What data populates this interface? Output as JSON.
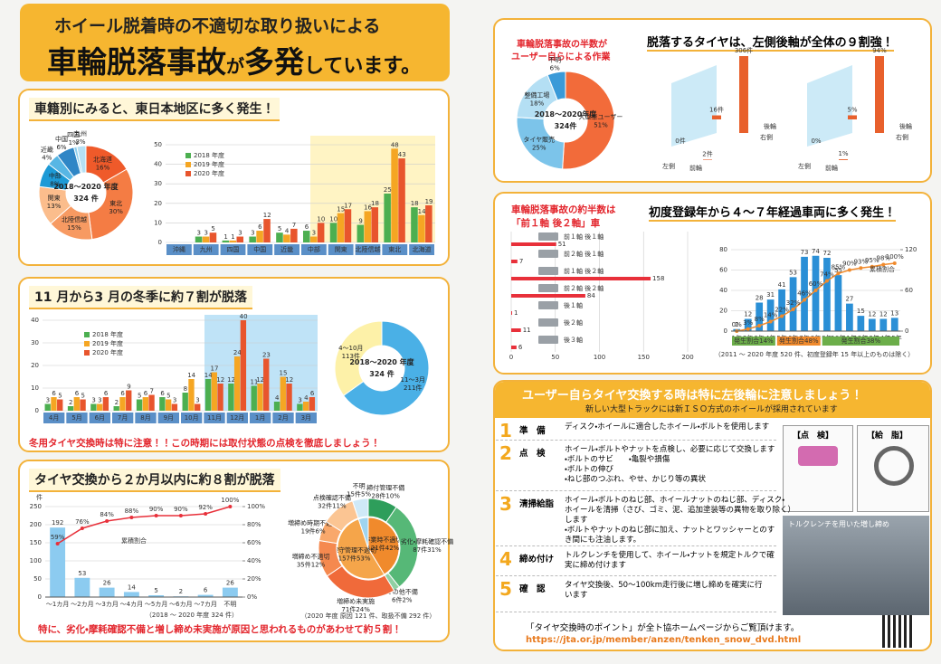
{
  "header": {
    "line1": "ホイール脱着時の不適切な取り扱いによる",
    "line2a": "車輪脱落事故",
    "line2b": "が",
    "line2c": "多発",
    "line2d": "しています。"
  },
  "region": {
    "heading": "車籍別にみると、東日本地区に多く発生！",
    "donut": {
      "type": "pie",
      "center": [
        "2018～2020 年度",
        "324 件"
      ],
      "labels": [
        "北海道",
        "東北",
        "北陸信越",
        "関東",
        "中部",
        "近畿",
        "中国",
        "四国",
        "九州"
      ],
      "values": [
        16,
        30,
        15,
        13,
        8,
        4,
        6,
        1,
        3
      ],
      "value_labels": [
        "16%",
        "30%",
        "15%",
        "13%",
        "8%",
        "4%",
        "6%",
        "1%",
        "3%"
      ],
      "colors": [
        "#ef5a2a",
        "#f47c44",
        "#f79a62",
        "#fbbd8c",
        "#1d9ad6",
        "#57b6e4",
        "#2f86c6",
        "#8fd0ee",
        "#b5e0f4"
      ]
    },
    "chart": {
      "type": "bar",
      "categories": [
        "沖縄",
        "九州",
        "四国",
        "中国",
        "近畿",
        "中部",
        "関東",
        "北陸信越",
        "東北",
        "北海道"
      ],
      "series": [
        {
          "name": "2018 年度",
          "color": "#4caf50",
          "values": [
            0,
            3,
            1,
            3,
            5,
            6,
            10,
            9,
            25,
            18
          ]
        },
        {
          "name": "2019 年度",
          "color": "#f5a623",
          "values": [
            0,
            3,
            1,
            6,
            4,
            3,
            15,
            16,
            48,
            14
          ]
        },
        {
          "name": "2020 年度",
          "color": "#e8552d",
          "values": [
            0,
            5,
            3,
            12,
            7,
            10,
            17,
            18,
            43,
            19
          ]
        }
      ],
      "ylim": [
        0,
        50
      ],
      "yticks": [
        0,
        10,
        20,
        30,
        40,
        50
      ]
    }
  },
  "winter": {
    "heading": "11 月から3 月の冬季に約７割が脱落",
    "chart": {
      "type": "bar",
      "categories": [
        "4月",
        "5月",
        "6月",
        "7月",
        "8月",
        "9月",
        "10月",
        "11月",
        "12月",
        "1月",
        "2月",
        "3月"
      ],
      "series": [
        {
          "name": "2018 年度",
          "color": "#4caf50",
          "values": [
            3,
            2,
            3,
            2,
            5,
            6,
            8,
            14,
            12,
            11,
            4,
            3
          ]
        },
        {
          "name": "2019 年度",
          "color": "#f5a623",
          "values": [
            6,
            6,
            3,
            6,
            6,
            5,
            14,
            17,
            24,
            12,
            15,
            4
          ]
        },
        {
          "name": "2020 年度",
          "color": "#e8552d",
          "values": [
            5,
            5,
            6,
            9,
            7,
            3,
            3,
            12,
            40,
            23,
            12,
            6
          ]
        }
      ],
      "ylim": [
        0,
        40
      ],
      "yticks": [
        0,
        10,
        20,
        30,
        40
      ]
    },
    "donut": {
      "type": "pie",
      "center": [
        "2018～2020 年度",
        "324 件"
      ],
      "labels": [
        "11～3月",
        "4～10月"
      ],
      "values": [
        211,
        113
      ],
      "value_labels": [
        "211件",
        "113件"
      ],
      "colors": [
        "#4ab0e6",
        "#fdf1a8"
      ]
    },
    "note": "冬用タイヤ交換時は特に注意！！この時期には取付状態の点検を徹底しましょう！"
  },
  "exchange": {
    "heading": "タイヤ交換から２か月以内に約８割が脱落",
    "chart": {
      "type": "bar-line",
      "unit": "件",
      "categories": [
        "～1カ月",
        "～2カ月",
        "～3カ月",
        "～4カ月",
        "～5カ月",
        "～6カ月",
        "～7カ月",
        "不明"
      ],
      "values": [
        192,
        53,
        26,
        14,
        5,
        2,
        6,
        26
      ],
      "color": "#8ccbf0",
      "line": {
        "name": "累積割合",
        "color": "#e8303a",
        "values": [
          59,
          76,
          84,
          88,
          90,
          90,
          92,
          100
        ],
        "value_labels": [
          "59%",
          "76%",
          "84%",
          "88%",
          "90%",
          "90%",
          "92%",
          "100%"
        ]
      },
      "ylim": [
        0,
        250
      ],
      "yticks": [
        0,
        50,
        100,
        150,
        200,
        250
      ],
      "y2lim": [
        0,
        100
      ],
      "y2ticks": [
        {
          "value": 0,
          "label": "0%"
        },
        {
          "value": 20,
          "label": "20%"
        },
        {
          "value": 40,
          "label": "40%"
        },
        {
          "value": 60,
          "label": "60%"
        },
        {
          "value": 80,
          "label": "80%"
        },
        {
          "value": 100,
          "label": "100%"
        }
      ],
      "note": "（2018 ～ 2020 年度 324 件）"
    },
    "causes": {
      "inner": {
        "type": "pie",
        "labels": [
          "作業時不適切",
          "保守管理不適切",
          "不明"
        ],
        "values": [
          121,
          157,
          15
        ],
        "value_labels": [
          "121件42%",
          "157件53%",
          "15件5%"
        ],
        "colors": [
          "#f08a2c",
          "#f5a54a",
          "#9fd4ef"
        ]
      },
      "outer": {
        "type": "pie",
        "labels": [
          "締付管理不備",
          "劣化・摩耗確認不備",
          "その他不備",
          "増締め未実施",
          "増締め不適切",
          "増締め時期不適切",
          "点検確認不備",
          "不明"
        ],
        "values": [
          28,
          87,
          6,
          71,
          35,
          19,
          32,
          15
        ],
        "value_labels": [
          "28件10%",
          "87件31%",
          "6件2%",
          "71件24%",
          "35件12%",
          "19件6%",
          "32件11%",
          "15件5%"
        ],
        "colors": [
          "#2e9e5b",
          "#56b877",
          "#8fd0a3",
          "#f06a3a",
          "#f5894f",
          "#f9a86b",
          "#fbc593",
          "#cfe9f7"
        ]
      },
      "note": "（2020 年度 原因 121 件、取扱不備 292 件）"
    },
    "footer": "特に、劣化・摩耗確認不備と増し締め未実施が原因と思われるものがあわせて約５割！"
  },
  "user": {
    "heading1": "車輪脱落事故の半数が",
    "heading2": "ユーザー自らによる作業",
    "donut": {
      "type": "pie",
      "center": [
        "2018～2020年度",
        "324件"
      ],
      "labels": [
        "大型車ユーザー",
        "タイヤ販売",
        "整備工場",
        "不明"
      ],
      "values": [
        51,
        25,
        18,
        6
      ],
      "value_labels": [
        "51%",
        "25%",
        "18%",
        "6%"
      ],
      "colors": [
        "#f26b3a",
        "#7cc4ea",
        "#b4dff4",
        "#3a9ad8"
      ]
    },
    "heading3": "脱落するタイヤは、左側後軸が全体の９割強！",
    "position": {
      "type": "bar",
      "axis_labels": [
        "左側",
        "右側",
        "前輪",
        "後輪"
      ],
      "groups": [
        {
          "values": [
            306,
            16,
            2,
            0
          ],
          "value_labels": [
            "306件",
            "16件",
            "2件",
            "0件"
          ]
        },
        {
          "values": [
            94,
            5,
            1,
            0
          ],
          "value_labels": [
            "94%",
            "5%",
            "1%",
            "0%"
          ]
        }
      ],
      "color": "#e8602c"
    }
  },
  "axle": {
    "heading1": "車輪脱落事故の約半数は",
    "heading2": "「前１軸 後２軸」車",
    "chart": {
      "type": "hbar",
      "categories": [
        "前１軸 後１軸",
        "前２軸 後１軸",
        "前１軸 後２軸",
        "前２軸 後２軸",
        "後１軸",
        "後２軸",
        "後３軸"
      ],
      "values": [
        51,
        7,
        158,
        84,
        1,
        11,
        6
      ],
      "color": "#e8303a",
      "xlim": [
        0,
        200
      ],
      "xticks": [
        0,
        50,
        100,
        150,
        200
      ]
    },
    "heading3": "初度登録年から４～７年経過車両に多く発生！",
    "age": {
      "type": "bar-line",
      "categories": [
        "1年",
        "2年",
        "3年",
        "4年",
        "5年",
        "6年",
        "7年",
        "8年",
        "9年",
        "10年",
        "11年",
        "12年",
        "13年",
        "14年",
        "15年"
      ],
      "values": [
        2,
        12,
        28,
        31,
        41,
        53,
        73,
        74,
        72,
        55,
        27,
        15,
        12,
        12,
        13
      ],
      "color": "#2a8fd6",
      "line": {
        "name": "累積割合",
        "color": "#f08a2c",
        "values": [
          0,
          3,
          8,
          14,
          22,
          32,
          46,
          60,
          74,
          85,
          90,
          93,
          95,
          98,
          100
        ],
        "value_labels": [
          "0%",
          "3%",
          "8%",
          "14%",
          "22%",
          "32%",
          "46%",
          "60%",
          "74%",
          "85%",
          "90%",
          "93%",
          "95%",
          "98%",
          "100%"
        ]
      },
      "ylim": [
        0,
        80
      ],
      "yticks": [
        0,
        20,
        40,
        60,
        80
      ],
      "y2lim": [
        0,
        120
      ],
      "y2ticks": [
        0,
        60,
        120
      ],
      "annotations": [
        "発生割合14%",
        "発生割合48%",
        "発生割合38%"
      ],
      "note": "（2011 ～ 2020 年度 520 件、初度登録年 15 年以上のものは除く）"
    }
  },
  "steps": {
    "heading": "ユーザー自らタイヤ交換する時は特に左後輪に注意しましょう！",
    "subheading": "新しい大型トラックには新ＩＳＯ方式のホイールが採用されています",
    "items": [
      {
        "num": "1",
        "title": "準　備",
        "lines": [
          "ディスク・ホイールに適合したホイール・ボルトを使用します"
        ]
      },
      {
        "num": "2",
        "title": "点　検",
        "lines": [
          "ホイール・ボルトやナットを点検し、必要に応じて交換します",
          "・ボルトのサビ　　・亀裂や損傷",
          "・ボルトの伸び",
          "・ねじ部のつぶれ、やせ、かじり等の異状"
        ]
      },
      {
        "num": "3",
        "title": "清掃給脂",
        "lines": [
          "ホイール・ボルトのねじ部、ホイールナットのねじ部、ディスク・",
          "ホイールを清掃（さび、ゴミ、泥、追加塗装等の異物を取り除く）",
          "します",
          "・ボルトやナットのねじ部に加え、ナットとワッシャーとのす",
          "き間にも注油します。"
        ]
      },
      {
        "num": "4",
        "title": "締め付け",
        "lines": [
          "トルクレンチを使用して、ホイール・ナットを規定トルクで確",
          "実に締め付けます"
        ]
      },
      {
        "num": "5",
        "title": "確　認",
        "lines": [
          "タイヤ交換後、50～100km走行後に増し締めを確実に行",
          "います"
        ]
      }
    ],
    "box1": "【点　検】",
    "box2": "【給　脂】",
    "photo": "トルクレンチを用いた増し締め",
    "footer": "「タイヤ交換時のポイント」が全ト協ホームページからご覧頂けます。",
    "url": "https://jta.or.jp/member/anzen/tenken_snow_dvd.html"
  }
}
